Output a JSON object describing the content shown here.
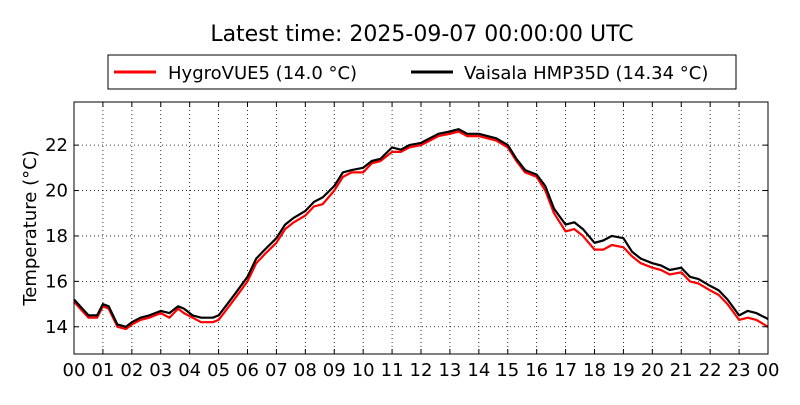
{
  "chart_data": {
    "type": "line",
    "title": "Latest time: 2025-09-07 00:00:00 UTC",
    "ylabel": "Temperature (°C)",
    "xlabel": "",
    "xlim": [
      0,
      24
    ],
    "ylim": [
      12.8,
      23.9
    ],
    "grid": true,
    "legend_position": "top",
    "x_ticks": [
      0,
      1,
      2,
      3,
      4,
      5,
      6,
      7,
      8,
      9,
      10,
      11,
      12,
      13,
      14,
      15,
      16,
      17,
      18,
      19,
      20,
      21,
      22,
      23,
      24
    ],
    "x_tick_labels": [
      "00",
      "01",
      "02",
      "03",
      "04",
      "05",
      "06",
      "07",
      "08",
      "09",
      "10",
      "11",
      "12",
      "13",
      "14",
      "15",
      "16",
      "17",
      "18",
      "19",
      "20",
      "21",
      "22",
      "23",
      "00"
    ],
    "y_ticks": [
      14,
      16,
      18,
      20,
      22
    ],
    "y_tick_labels": [
      "14",
      "16",
      "18",
      "20",
      "22"
    ],
    "series": [
      {
        "name": "HygroVUE5 (14.0 °C)",
        "color": "#ff0000",
        "x": [
          0,
          0.5,
          0.8,
          1.0,
          1.2,
          1.5,
          1.8,
          2.0,
          2.3,
          2.6,
          3.0,
          3.3,
          3.6,
          3.8,
          4.1,
          4.4,
          4.8,
          5.0,
          5.3,
          5.6,
          6.0,
          6.3,
          6.6,
          7.0,
          7.3,
          7.6,
          8.0,
          8.3,
          8.6,
          9.0,
          9.3,
          9.6,
          10.0,
          10.3,
          10.6,
          11.0,
          11.3,
          11.6,
          12.0,
          12.3,
          12.6,
          13.0,
          13.3,
          13.6,
          14.0,
          14.3,
          14.6,
          15.0,
          15.3,
          15.6,
          16.0,
          16.3,
          16.6,
          17.0,
          17.3,
          17.6,
          18.0,
          18.3,
          18.6,
          19.0,
          19.3,
          19.6,
          20.0,
          20.3,
          20.6,
          21.0,
          21.3,
          21.6,
          22.0,
          22.3,
          22.6,
          23.0,
          23.3,
          23.6,
          24.0
        ],
        "y": [
          15.1,
          14.4,
          14.4,
          14.9,
          14.8,
          14.0,
          13.9,
          14.1,
          14.3,
          14.4,
          14.6,
          14.4,
          14.8,
          14.6,
          14.4,
          14.2,
          14.2,
          14.3,
          14.8,
          15.3,
          16.0,
          16.8,
          17.2,
          17.7,
          18.3,
          18.6,
          18.9,
          19.3,
          19.4,
          20.0,
          20.6,
          20.8,
          20.8,
          21.2,
          21.3,
          21.7,
          21.7,
          21.9,
          22.0,
          22.2,
          22.4,
          22.5,
          22.6,
          22.4,
          22.4,
          22.3,
          22.2,
          21.9,
          21.3,
          20.8,
          20.6,
          20.0,
          19.0,
          18.2,
          18.3,
          18.0,
          17.4,
          17.4,
          17.6,
          17.5,
          17.1,
          16.8,
          16.6,
          16.5,
          16.3,
          16.4,
          16.0,
          15.9,
          15.6,
          15.4,
          15.0,
          14.3,
          14.4,
          14.3,
          14.0
        ]
      },
      {
        "name": "Vaisala HMP35D (14.34 °C)",
        "color": "#000000",
        "x": [
          0,
          0.5,
          0.8,
          1.0,
          1.2,
          1.5,
          1.8,
          2.0,
          2.3,
          2.6,
          3.0,
          3.3,
          3.6,
          3.8,
          4.1,
          4.4,
          4.8,
          5.0,
          5.3,
          5.6,
          6.0,
          6.3,
          6.6,
          7.0,
          7.3,
          7.6,
          8.0,
          8.3,
          8.6,
          9.0,
          9.3,
          9.6,
          10.0,
          10.3,
          10.6,
          11.0,
          11.3,
          11.6,
          12.0,
          12.3,
          12.6,
          13.0,
          13.3,
          13.6,
          14.0,
          14.3,
          14.6,
          15.0,
          15.3,
          15.6,
          16.0,
          16.3,
          16.6,
          17.0,
          17.3,
          17.6,
          18.0,
          18.3,
          18.6,
          19.0,
          19.3,
          19.6,
          20.0,
          20.3,
          20.6,
          21.0,
          21.3,
          21.6,
          22.0,
          22.3,
          22.6,
          23.0,
          23.3,
          23.6,
          24.0
        ],
        "y": [
          15.2,
          14.5,
          14.5,
          15.0,
          14.9,
          14.1,
          14.0,
          14.2,
          14.4,
          14.5,
          14.7,
          14.6,
          14.9,
          14.8,
          14.5,
          14.4,
          14.4,
          14.5,
          15.0,
          15.5,
          16.2,
          17.0,
          17.4,
          17.9,
          18.5,
          18.8,
          19.1,
          19.5,
          19.7,
          20.2,
          20.8,
          20.9,
          21.0,
          21.3,
          21.4,
          21.9,
          21.8,
          22.0,
          22.1,
          22.3,
          22.5,
          22.6,
          22.7,
          22.5,
          22.5,
          22.4,
          22.3,
          22.0,
          21.4,
          20.9,
          20.7,
          20.2,
          19.2,
          18.5,
          18.6,
          18.3,
          17.7,
          17.8,
          18.0,
          17.9,
          17.3,
          17.0,
          16.8,
          16.7,
          16.5,
          16.6,
          16.2,
          16.1,
          15.8,
          15.6,
          15.2,
          14.5,
          14.7,
          14.6,
          14.34
        ]
      }
    ]
  }
}
